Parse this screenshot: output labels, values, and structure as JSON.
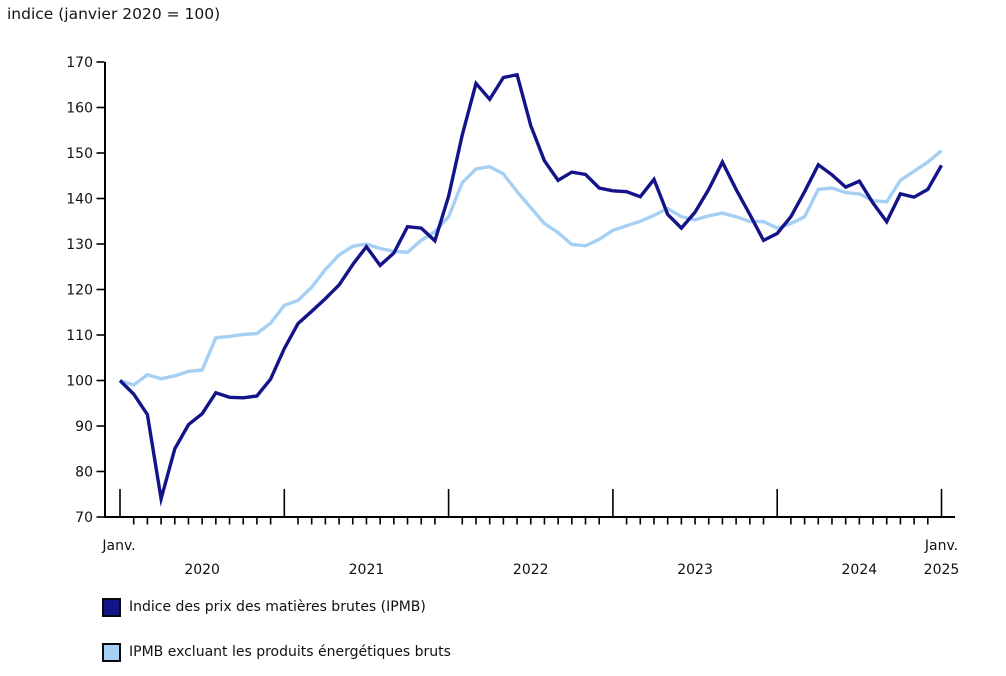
{
  "title": "indice (janvier 2020 = 100)",
  "y_axis": {
    "ticks": [
      70,
      80,
      90,
      100,
      110,
      120,
      130,
      140,
      150,
      160,
      170
    ]
  },
  "x_axis": {
    "first_label": "Janv.",
    "year_labels": [
      "2020",
      "2021",
      "2022",
      "2023",
      "2024"
    ],
    "last_label_top": "Janv.",
    "last_label_year": "2025"
  },
  "chart_data": {
    "type": "line",
    "title": "indice (janvier 2020 = 100)",
    "x_range": {
      "start": "janvier 2020",
      "end": "janvier 2025",
      "freq": "monthly",
      "points": 61
    },
    "ylim": [
      70,
      170
    ],
    "ytick_step": 10,
    "grid": false,
    "legend_position": "bottom-left",
    "axis_color": "#000000",
    "series": [
      {
        "name": "Indice des prix des matières brutes (IPMB)",
        "color": "#14148a",
        "values": [
          100,
          97,
          92.5,
          74,
          85,
          90.3,
          92.7,
          97.3,
          96.3,
          96.2,
          96.6,
          100.3,
          107,
          112.5,
          115.2,
          118,
          121,
          125.5,
          129.4,
          125.3,
          128,
          133.8,
          133.5,
          130.7,
          140.5,
          154,
          165.3,
          161.8,
          166.6,
          167.2,
          156,
          148.3,
          144,
          145.8,
          145.3,
          142.3,
          141.7,
          141.5,
          140.4,
          144.2,
          136.5,
          133.5,
          137,
          142,
          148,
          142,
          136.5,
          130.8,
          132.3,
          136,
          141.5,
          147.4,
          145.2,
          142.5,
          143.8,
          139,
          134.9,
          141,
          140.3,
          142,
          147.3
        ]
      },
      {
        "name": "IPMB excluant les produits énergétiques bruts",
        "color": "#a5cff3",
        "values": [
          100,
          99,
          101.3,
          100.4,
          101,
          102,
          102.3,
          109.4,
          109.7,
          110.1,
          110.3,
          112.6,
          116.5,
          117.6,
          120.5,
          124.4,
          127.6,
          129.5,
          130,
          129,
          128.4,
          128.2,
          130.8,
          132.7,
          136,
          143.5,
          146.5,
          147,
          145.4,
          141.5,
          138,
          134.5,
          132.5,
          129.9,
          129.6,
          131,
          133,
          134,
          135,
          136.3,
          137.8,
          136,
          135.3,
          136.2,
          136.8,
          136,
          135,
          134.9,
          133.5,
          134.5,
          136,
          142,
          142.3,
          141.3,
          141,
          139.5,
          139.3,
          144,
          146,
          148,
          150.5
        ]
      }
    ]
  },
  "legend": {
    "items": [
      {
        "label": "Indice des prix des matières brutes (IPMB)"
      },
      {
        "label": "IPMB excluant les produits énergétiques bruts"
      }
    ]
  }
}
